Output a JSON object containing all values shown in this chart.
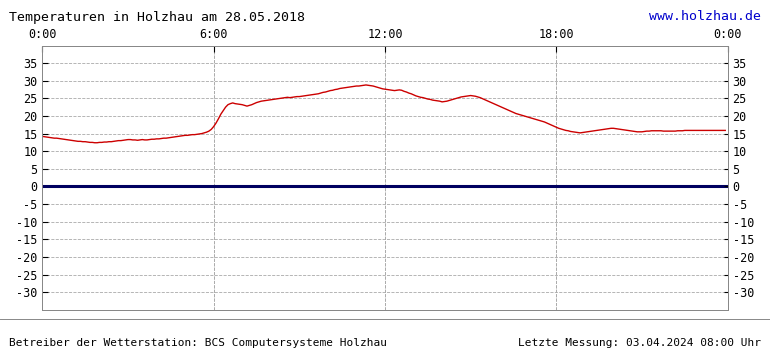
{
  "title": "Temperaturen in Holzhau am 28.05.2018",
  "title_color": "#000000",
  "url_text": "www.holzhau.de",
  "url_color": "#0000cc",
  "footer_left": "Betreiber der Wetterstation: BCS Computersysteme Holzhau",
  "footer_right": "Letzte Messung: 03.04.2024 08:00 Uhr",
  "footer_color": "#000000",
  "bg_color": "#ffffff",
  "grid_color": "#aaaaaa",
  "line_color": "#cc0000",
  "zero_line_color": "#000060",
  "xlim": [
    0,
    288
  ],
  "ylim": [
    -35,
    40
  ],
  "yticks": [
    -30,
    -25,
    -20,
    -15,
    -10,
    -5,
    0,
    5,
    10,
    15,
    20,
    25,
    30,
    35
  ],
  "xtick_labels": [
    "0:00",
    "6:00",
    "12:00",
    "18:00",
    "0:00"
  ],
  "xtick_positions": [
    0,
    72,
    144,
    216,
    288
  ],
  "temperature": [
    14.2,
    14.1,
    14.0,
    13.9,
    13.8,
    13.7,
    13.7,
    13.6,
    13.5,
    13.4,
    13.3,
    13.2,
    13.1,
    13.0,
    12.9,
    12.8,
    12.8,
    12.7,
    12.7,
    12.6,
    12.5,
    12.5,
    12.4,
    12.4,
    12.5,
    12.5,
    12.6,
    12.6,
    12.7,
    12.7,
    12.8,
    12.9,
    13.0,
    13.0,
    13.1,
    13.2,
    13.3,
    13.3,
    13.2,
    13.2,
    13.1,
    13.2,
    13.3,
    13.2,
    13.2,
    13.3,
    13.4,
    13.4,
    13.5,
    13.5,
    13.6,
    13.7,
    13.7,
    13.8,
    13.9,
    14.0,
    14.1,
    14.2,
    14.3,
    14.4,
    14.5,
    14.5,
    14.6,
    14.7,
    14.7,
    14.8,
    14.9,
    15.0,
    15.2,
    15.4,
    15.7,
    16.2,
    17.0,
    18.0,
    19.2,
    20.5,
    21.5,
    22.5,
    23.2,
    23.5,
    23.7,
    23.5,
    23.4,
    23.3,
    23.2,
    23.0,
    22.8,
    23.0,
    23.2,
    23.5,
    23.8,
    24.0,
    24.2,
    24.3,
    24.4,
    24.5,
    24.6,
    24.7,
    24.8,
    24.9,
    25.0,
    25.1,
    25.2,
    25.3,
    25.2,
    25.3,
    25.4,
    25.5,
    25.5,
    25.6,
    25.7,
    25.8,
    25.9,
    26.0,
    26.1,
    26.2,
    26.3,
    26.5,
    26.7,
    26.8,
    27.0,
    27.2,
    27.3,
    27.5,
    27.6,
    27.8,
    27.9,
    28.0,
    28.1,
    28.2,
    28.3,
    28.4,
    28.5,
    28.5,
    28.6,
    28.7,
    28.8,
    28.7,
    28.6,
    28.5,
    28.3,
    28.1,
    27.9,
    27.7,
    27.6,
    27.5,
    27.4,
    27.3,
    27.2,
    27.3,
    27.4,
    27.3,
    27.0,
    26.8,
    26.5,
    26.3,
    26.0,
    25.7,
    25.5,
    25.3,
    25.2,
    25.0,
    24.8,
    24.7,
    24.5,
    24.4,
    24.3,
    24.2,
    24.0,
    24.1,
    24.2,
    24.4,
    24.6,
    24.8,
    25.0,
    25.2,
    25.4,
    25.5,
    25.6,
    25.7,
    25.8,
    25.7,
    25.6,
    25.4,
    25.2,
    24.9,
    24.6,
    24.3,
    24.0,
    23.7,
    23.4,
    23.1,
    22.8,
    22.5,
    22.2,
    21.9,
    21.6,
    21.3,
    21.0,
    20.7,
    20.5,
    20.3,
    20.1,
    19.9,
    19.7,
    19.5,
    19.3,
    19.1,
    18.9,
    18.7,
    18.5,
    18.3,
    18.0,
    17.7,
    17.4,
    17.1,
    16.8,
    16.5,
    16.3,
    16.1,
    15.9,
    15.8,
    15.6,
    15.5,
    15.4,
    15.3,
    15.2,
    15.3,
    15.4,
    15.5,
    15.6,
    15.7,
    15.8,
    15.9,
    16.0,
    16.1,
    16.2,
    16.3,
    16.4,
    16.5,
    16.5,
    16.4,
    16.3,
    16.2,
    16.1,
    16.0,
    15.9,
    15.8,
    15.7,
    15.6,
    15.5,
    15.5,
    15.5,
    15.6,
    15.7,
    15.7,
    15.8,
    15.8,
    15.8,
    15.8,
    15.8,
    15.7,
    15.7,
    15.7,
    15.7,
    15.7,
    15.7,
    15.8,
    15.8,
    15.8,
    15.9,
    15.9,
    15.9,
    15.9,
    15.9,
    15.9,
    15.9,
    15.9,
    15.9,
    15.9,
    15.9,
    15.9,
    15.9,
    15.9,
    15.9,
    15.9,
    15.9,
    15.9
  ]
}
